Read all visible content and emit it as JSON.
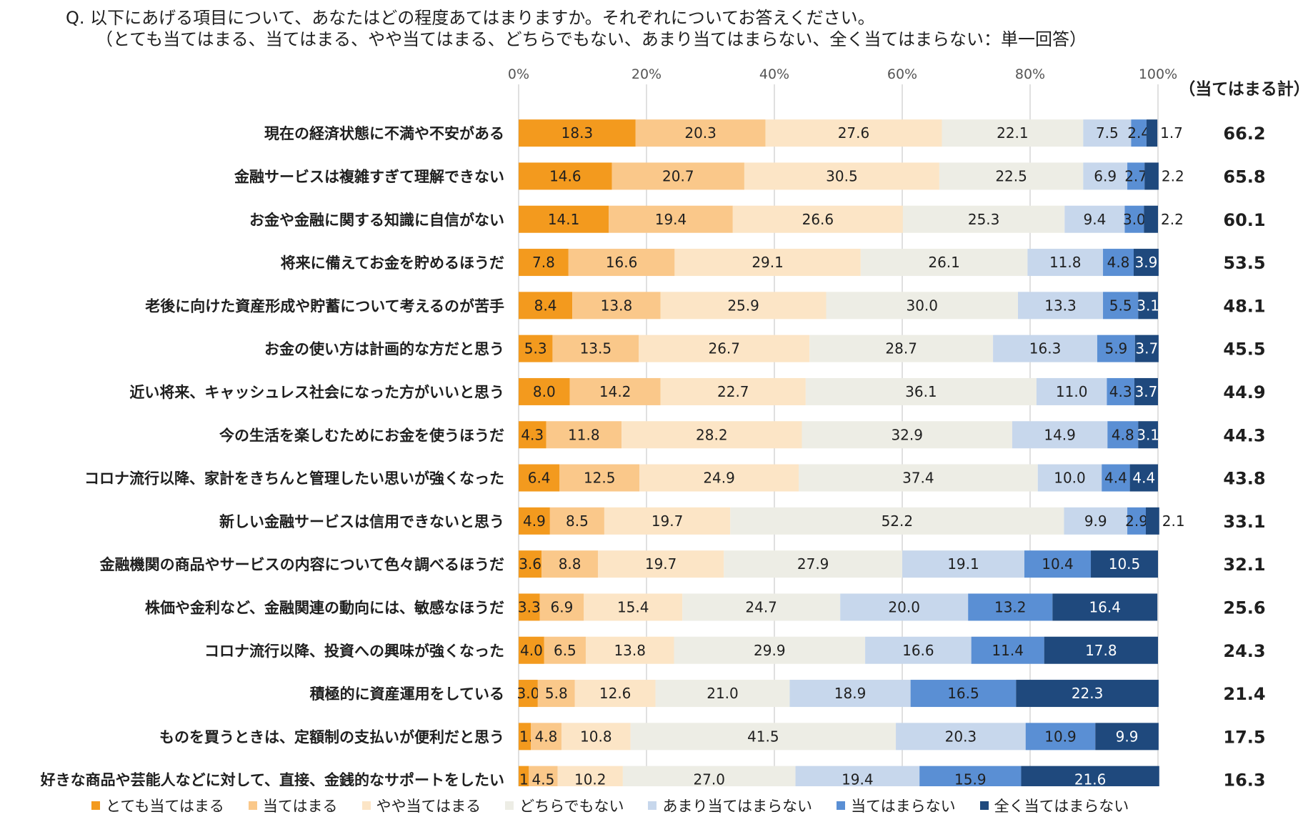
{
  "question": {
    "line1": "Q.  以下にあげる項目について、あなたはどの程度あてはまりますか。それぞれについてお答えください。",
    "line2": "（とても当てはまる、当てはまる、やや当てはまる、どちらでもない、あまり当てはまらない、全く当てはまらない：単一回答）"
  },
  "chart_data": {
    "type": "bar",
    "orientation": "horizontal",
    "stacked": true,
    "total_header": "（当てはまる計）",
    "xlim": [
      0,
      100
    ],
    "x_ticks": [
      "0%",
      "20%",
      "40%",
      "60%",
      "80%",
      "100%"
    ],
    "colors": [
      "#F39A1E",
      "#FAC88A",
      "#FCE5C6",
      "#EDEDE5",
      "#C7D7EC",
      "#5A8FD4",
      "#1F497D"
    ],
    "label_colors": [
      "#1f1f1f",
      "#1f1f1f",
      "#1f1f1f",
      "#1f1f1f",
      "#1f1f1f",
      "#1f1f1f",
      "#ffffff"
    ],
    "series_names": [
      "とても当てはまる",
      "当てはまる",
      "やや当てはまる",
      "どちらでもない",
      "あまり当てはまらない",
      "当てはまらない",
      "全く当てはまらない"
    ],
    "categories": [
      "現在の経済状態に不満や不安がある",
      "金融サービスは複雑すぎて理解できない",
      "お金や金融に関する知識に自信がない",
      "将来に備えてお金を貯めるほうだ",
      "老後に向けた資産形成や貯蓄について考えるのが苦手",
      "お金の使い方は計画的な方だと思う",
      "近い将来、キャッシュレス社会になった方がいいと思う",
      "今の生活を楽しむためにお金を使うほうだ",
      "コロナ流行以降、家計をきちんと管理したい思いが強くなった",
      "新しい金融サービスは信用できないと思う",
      "金融機関の商品やサービスの内容について色々調べるほうだ",
      "株価や金利など、金融関連の動向には、敏感なほうだ",
      "コロナ流行以降、投資への興味が強くなった",
      "積極的に資産運用をしている",
      "ものを買うときは、定額制の支払いが便利だと思う",
      "好きな商品や芸能人などに対して、直接、金銭的なサポートをしたい"
    ],
    "values": [
      [
        18.3,
        20.3,
        27.6,
        22.1,
        7.5,
        2.4,
        1.7
      ],
      [
        14.6,
        20.7,
        30.5,
        22.5,
        6.9,
        2.7,
        2.2
      ],
      [
        14.1,
        19.4,
        26.6,
        25.3,
        9.4,
        3.0,
        2.2
      ],
      [
        7.8,
        16.6,
        29.1,
        26.1,
        11.8,
        4.8,
        3.9
      ],
      [
        8.4,
        13.8,
        25.9,
        30.0,
        13.3,
        5.5,
        3.1
      ],
      [
        5.3,
        13.5,
        26.7,
        28.7,
        16.3,
        5.9,
        3.7
      ],
      [
        8.0,
        14.2,
        22.7,
        36.1,
        11.0,
        4.3,
        3.7
      ],
      [
        4.3,
        11.8,
        28.2,
        32.9,
        14.9,
        4.8,
        3.1
      ],
      [
        6.4,
        12.5,
        24.9,
        37.4,
        10.0,
        4.4,
        4.4
      ],
      [
        4.9,
        8.5,
        19.7,
        52.2,
        9.9,
        2.9,
        2.1
      ],
      [
        3.6,
        8.8,
        19.7,
        27.9,
        19.1,
        10.4,
        10.5
      ],
      [
        3.3,
        6.9,
        15.4,
        24.7,
        20.0,
        13.2,
        16.4
      ],
      [
        4.0,
        6.5,
        13.8,
        29.9,
        16.6,
        11.4,
        17.8
      ],
      [
        3.0,
        5.8,
        12.6,
        21.0,
        18.9,
        16.5,
        22.3
      ],
      [
        1.9,
        4.8,
        10.8,
        41.5,
        20.3,
        10.9,
        9.9
      ],
      [
        1.6,
        4.5,
        10.2,
        27.0,
        19.4,
        15.9,
        21.6
      ]
    ],
    "totals": [
      "66.2",
      "65.8",
      "60.1",
      "53.5",
      "48.1",
      "45.5",
      "44.9",
      "44.3",
      "43.8",
      "33.1",
      "32.1",
      "25.6",
      "24.3",
      "21.4",
      "17.5",
      "16.3"
    ]
  }
}
